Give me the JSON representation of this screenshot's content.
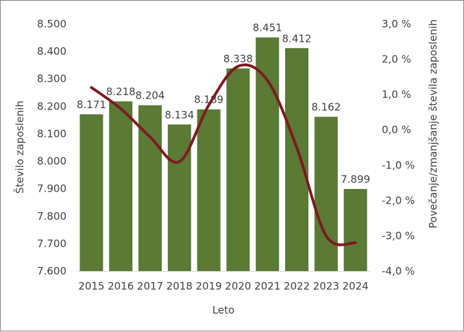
{
  "chart_data": {
    "type": "bar",
    "categories": [
      "2015",
      "2016",
      "2017",
      "2018",
      "2019",
      "2020",
      "2021",
      "2022",
      "2023",
      "2024"
    ],
    "series": [
      {
        "name": "Število zaposlenih",
        "type": "bar",
        "axis": "left",
        "color": "#5a7a35",
        "values": [
          8171,
          8218,
          8204,
          8134,
          8189,
          8338,
          8451,
          8412,
          8162,
          7899
        ],
        "labels": [
          "8.171",
          "8.218",
          "8.204",
          "8.134",
          "8.189",
          "8.338",
          "8.451",
          "8.412",
          "8.162",
          "7.899"
        ]
      },
      {
        "name": "Povečanje/zmanjšanje števila zaposlenih",
        "type": "line",
        "axis": "right",
        "color": "#7b1b1f",
        "values": [
          1.2,
          0.6,
          -0.2,
          -0.9,
          0.7,
          1.8,
          1.4,
          -0.5,
          -3.0,
          -3.2
        ]
      }
    ],
    "xlabel": "Leto",
    "ylabel": "Število zaposlenih",
    "y2label": "Povečanje/zmanjšanje števila zaposlenih",
    "ylim": [
      7600,
      8500
    ],
    "y2lim": [
      -4.0,
      3.0
    ],
    "yticks": [
      "8.500",
      "8.400",
      "8.300",
      "8.200",
      "8.100",
      "8.000",
      "7.900",
      "7.800",
      "7.700",
      "7.600"
    ],
    "y2ticks": [
      "3,0 %",
      "2,0 %",
      "1,0 %",
      "0,0 %",
      "-1,0 %",
      "-2,0 %",
      "-3,0 %",
      "-4,0 %"
    ],
    "grid": false,
    "legend": "none"
  }
}
